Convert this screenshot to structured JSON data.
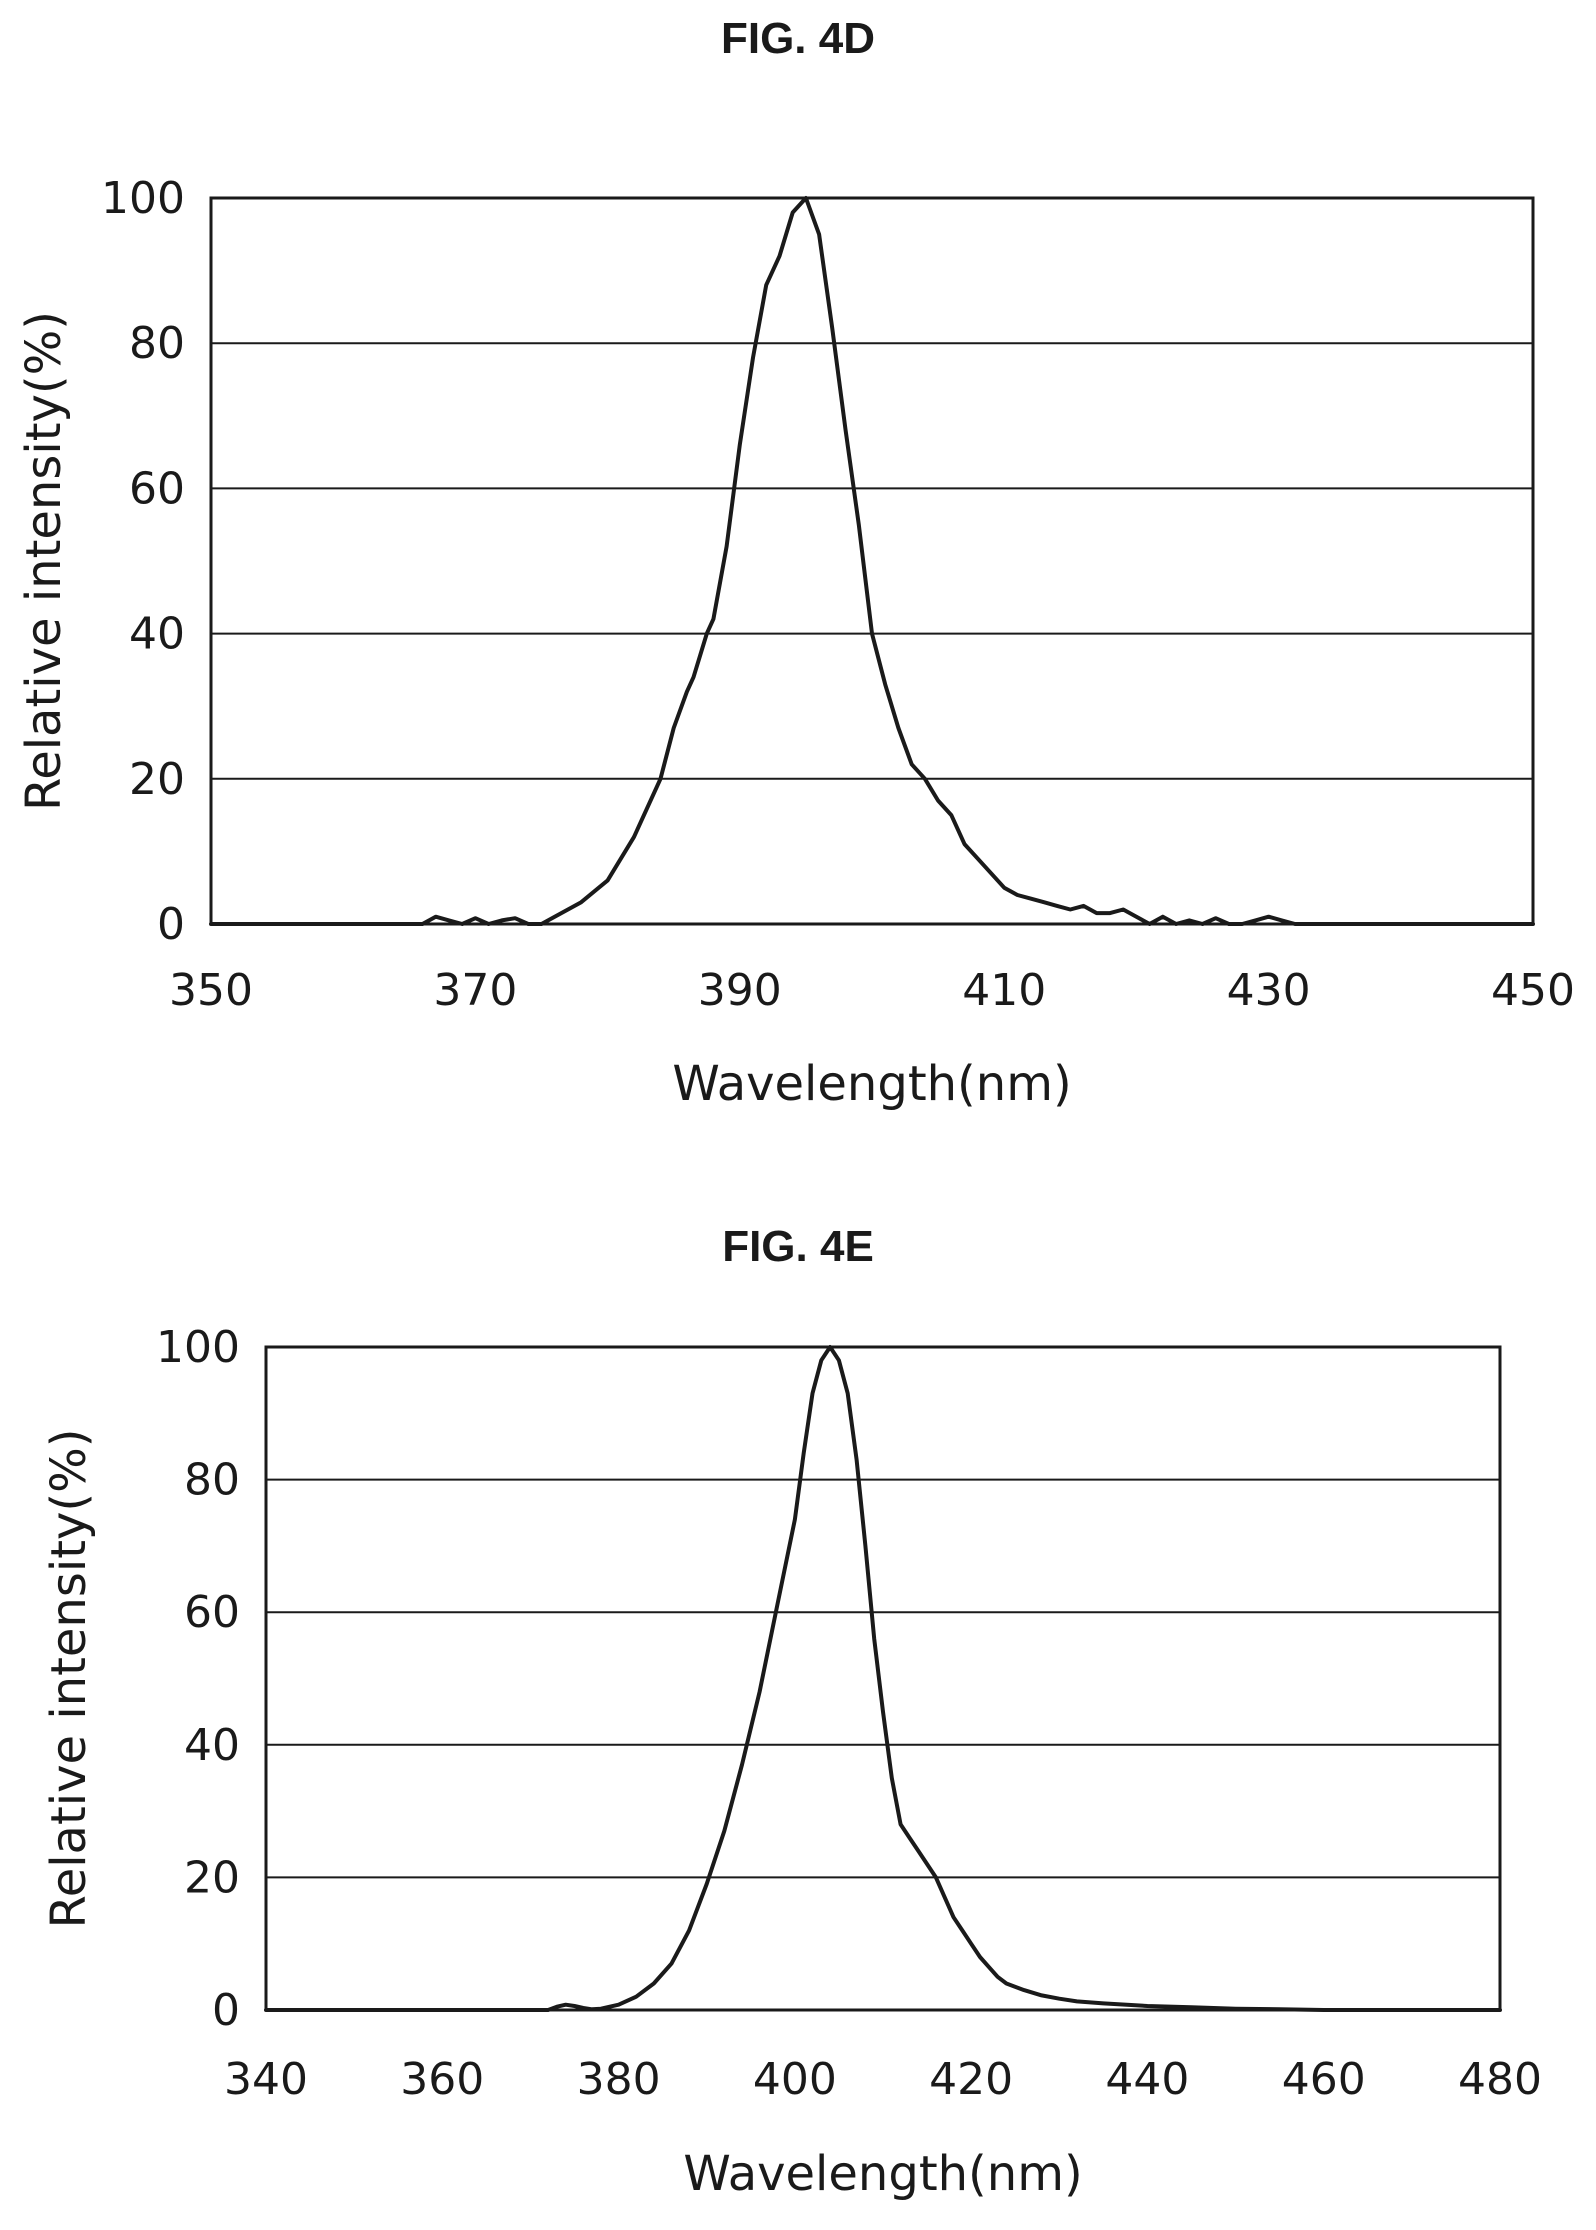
{
  "chart_data": [
    {
      "type": "line",
      "title": "FIG. 4D",
      "xlabel": "Wavelength(nm)",
      "ylabel": "Relative intensity(%)",
      "xlim": [
        350,
        450
      ],
      "ylim": [
        0,
        100
      ],
      "xticks": [
        "350",
        "370",
        "390",
        "410",
        "430",
        "450"
      ],
      "yticks": [
        "0",
        "20",
        "40",
        "60",
        "80",
        "100"
      ],
      "grid": "horizontal",
      "series": [
        {
          "x": [
            350,
            366,
            367,
            368,
            369,
            370,
            371,
            372,
            373,
            374,
            375,
            376,
            378,
            380,
            382,
            384,
            385,
            386,
            386.5,
            387.5,
            388,
            389,
            390,
            391,
            392,
            393,
            394,
            395,
            396,
            397,
            398,
            399,
            400,
            401,
            402,
            403,
            404,
            405,
            406,
            407,
            408,
            409,
            410,
            411,
            412,
            413,
            414,
            415,
            416,
            417,
            418,
            419,
            420,
            421,
            422,
            423,
            424,
            425,
            426,
            427,
            428,
            429,
            430,
            431,
            432,
            433,
            434,
            450
          ],
          "y": [
            0,
            0,
            1,
            0.5,
            0,
            0.8,
            0,
            0.5,
            0.8,
            0,
            0,
            1,
            3,
            6,
            12,
            20,
            27,
            32,
            34,
            40,
            42,
            52,
            66,
            78,
            88,
            92,
            98,
            100,
            95,
            82,
            68,
            55,
            40,
            33,
            27,
            22,
            20,
            17,
            15,
            11,
            9,
            7,
            5,
            4,
            3.5,
            3,
            2.5,
            2,
            2.5,
            1.5,
            1.5,
            2,
            1,
            0,
            1,
            0,
            0.5,
            0,
            0.8,
            0,
            0,
            0.5,
            1,
            0.5,
            0,
            0,
            0,
            0
          ]
        }
      ]
    },
    {
      "type": "line",
      "title": "FIG. 4E",
      "xlabel": "Wavelength(nm)",
      "ylabel": "Relative intensity(%)",
      "xlim": [
        340,
        480
      ],
      "ylim": [
        0,
        100
      ],
      "xticks": [
        "340",
        "360",
        "380",
        "400",
        "420",
        "440",
        "460",
        "480"
      ],
      "yticks": [
        "0",
        "20",
        "40",
        "60",
        "80",
        "100"
      ],
      "grid": "horizontal",
      "series": [
        {
          "x": [
            340,
            371,
            372,
            373,
            374,
            375,
            376,
            377,
            378,
            380,
            382,
            384,
            386,
            388,
            390,
            392,
            394,
            396,
            398,
            400,
            401,
            402,
            403,
            404,
            405,
            406,
            407,
            408,
            409,
            410,
            411,
            412,
            413,
            414,
            415,
            416,
            417,
            418,
            419,
            420,
            421,
            422,
            423,
            424,
            426,
            428,
            430,
            432,
            435,
            440,
            445,
            450,
            455,
            460,
            480
          ],
          "y": [
            0,
            0,
            0,
            0.5,
            0.8,
            0.6,
            0.3,
            0.1,
            0.2,
            0.8,
            2,
            4,
            7,
            12,
            19,
            27,
            37,
            48,
            61,
            74,
            84,
            93,
            98,
            100,
            98,
            93,
            83,
            70,
            56,
            45,
            35,
            28,
            26,
            24,
            22,
            20,
            17,
            14,
            12,
            10,
            8,
            6.5,
            5,
            4,
            3,
            2.2,
            1.7,
            1.3,
            1,
            0.6,
            0.4,
            0.2,
            0.1,
            0,
            0
          ]
        }
      ]
    }
  ]
}
